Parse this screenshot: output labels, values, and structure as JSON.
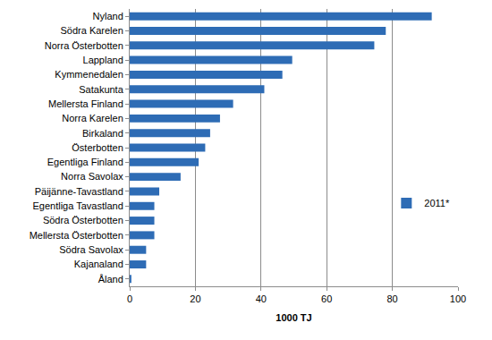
{
  "chart_data": {
    "type": "bar",
    "orientation": "horizontal",
    "x_label": "1000 TJ",
    "categories": [
      "Nyland",
      "Södra Karelen",
      "Norra Österbotten",
      "Lappland",
      "Kymmenedalen",
      "Satakunta",
      "Mellersta Finland",
      "Norra Karelen",
      "Birkaland",
      "Österbotten",
      "Egentliga Finland",
      "Norra Savolax",
      "Päijänne-Tavastland",
      "Egentliga Tavastland",
      "Södra Österbotten",
      "Mellersta Österbotten",
      "Södra Savolax",
      "Kajanaland",
      "Åland"
    ],
    "series": [
      {
        "name": "2011*",
        "color": "#2e6cb5",
        "values": [
          92,
          78,
          74.5,
          49.5,
          46.5,
          41,
          31.5,
          27.5,
          24.5,
          23,
          21,
          15.5,
          9,
          7.5,
          7.5,
          7.5,
          5,
          5,
          0.5
        ]
      }
    ],
    "xlim": [
      0,
      100
    ],
    "xticks": [
      0,
      20,
      40,
      60,
      80,
      100
    ],
    "grid": true,
    "legend": "right"
  }
}
